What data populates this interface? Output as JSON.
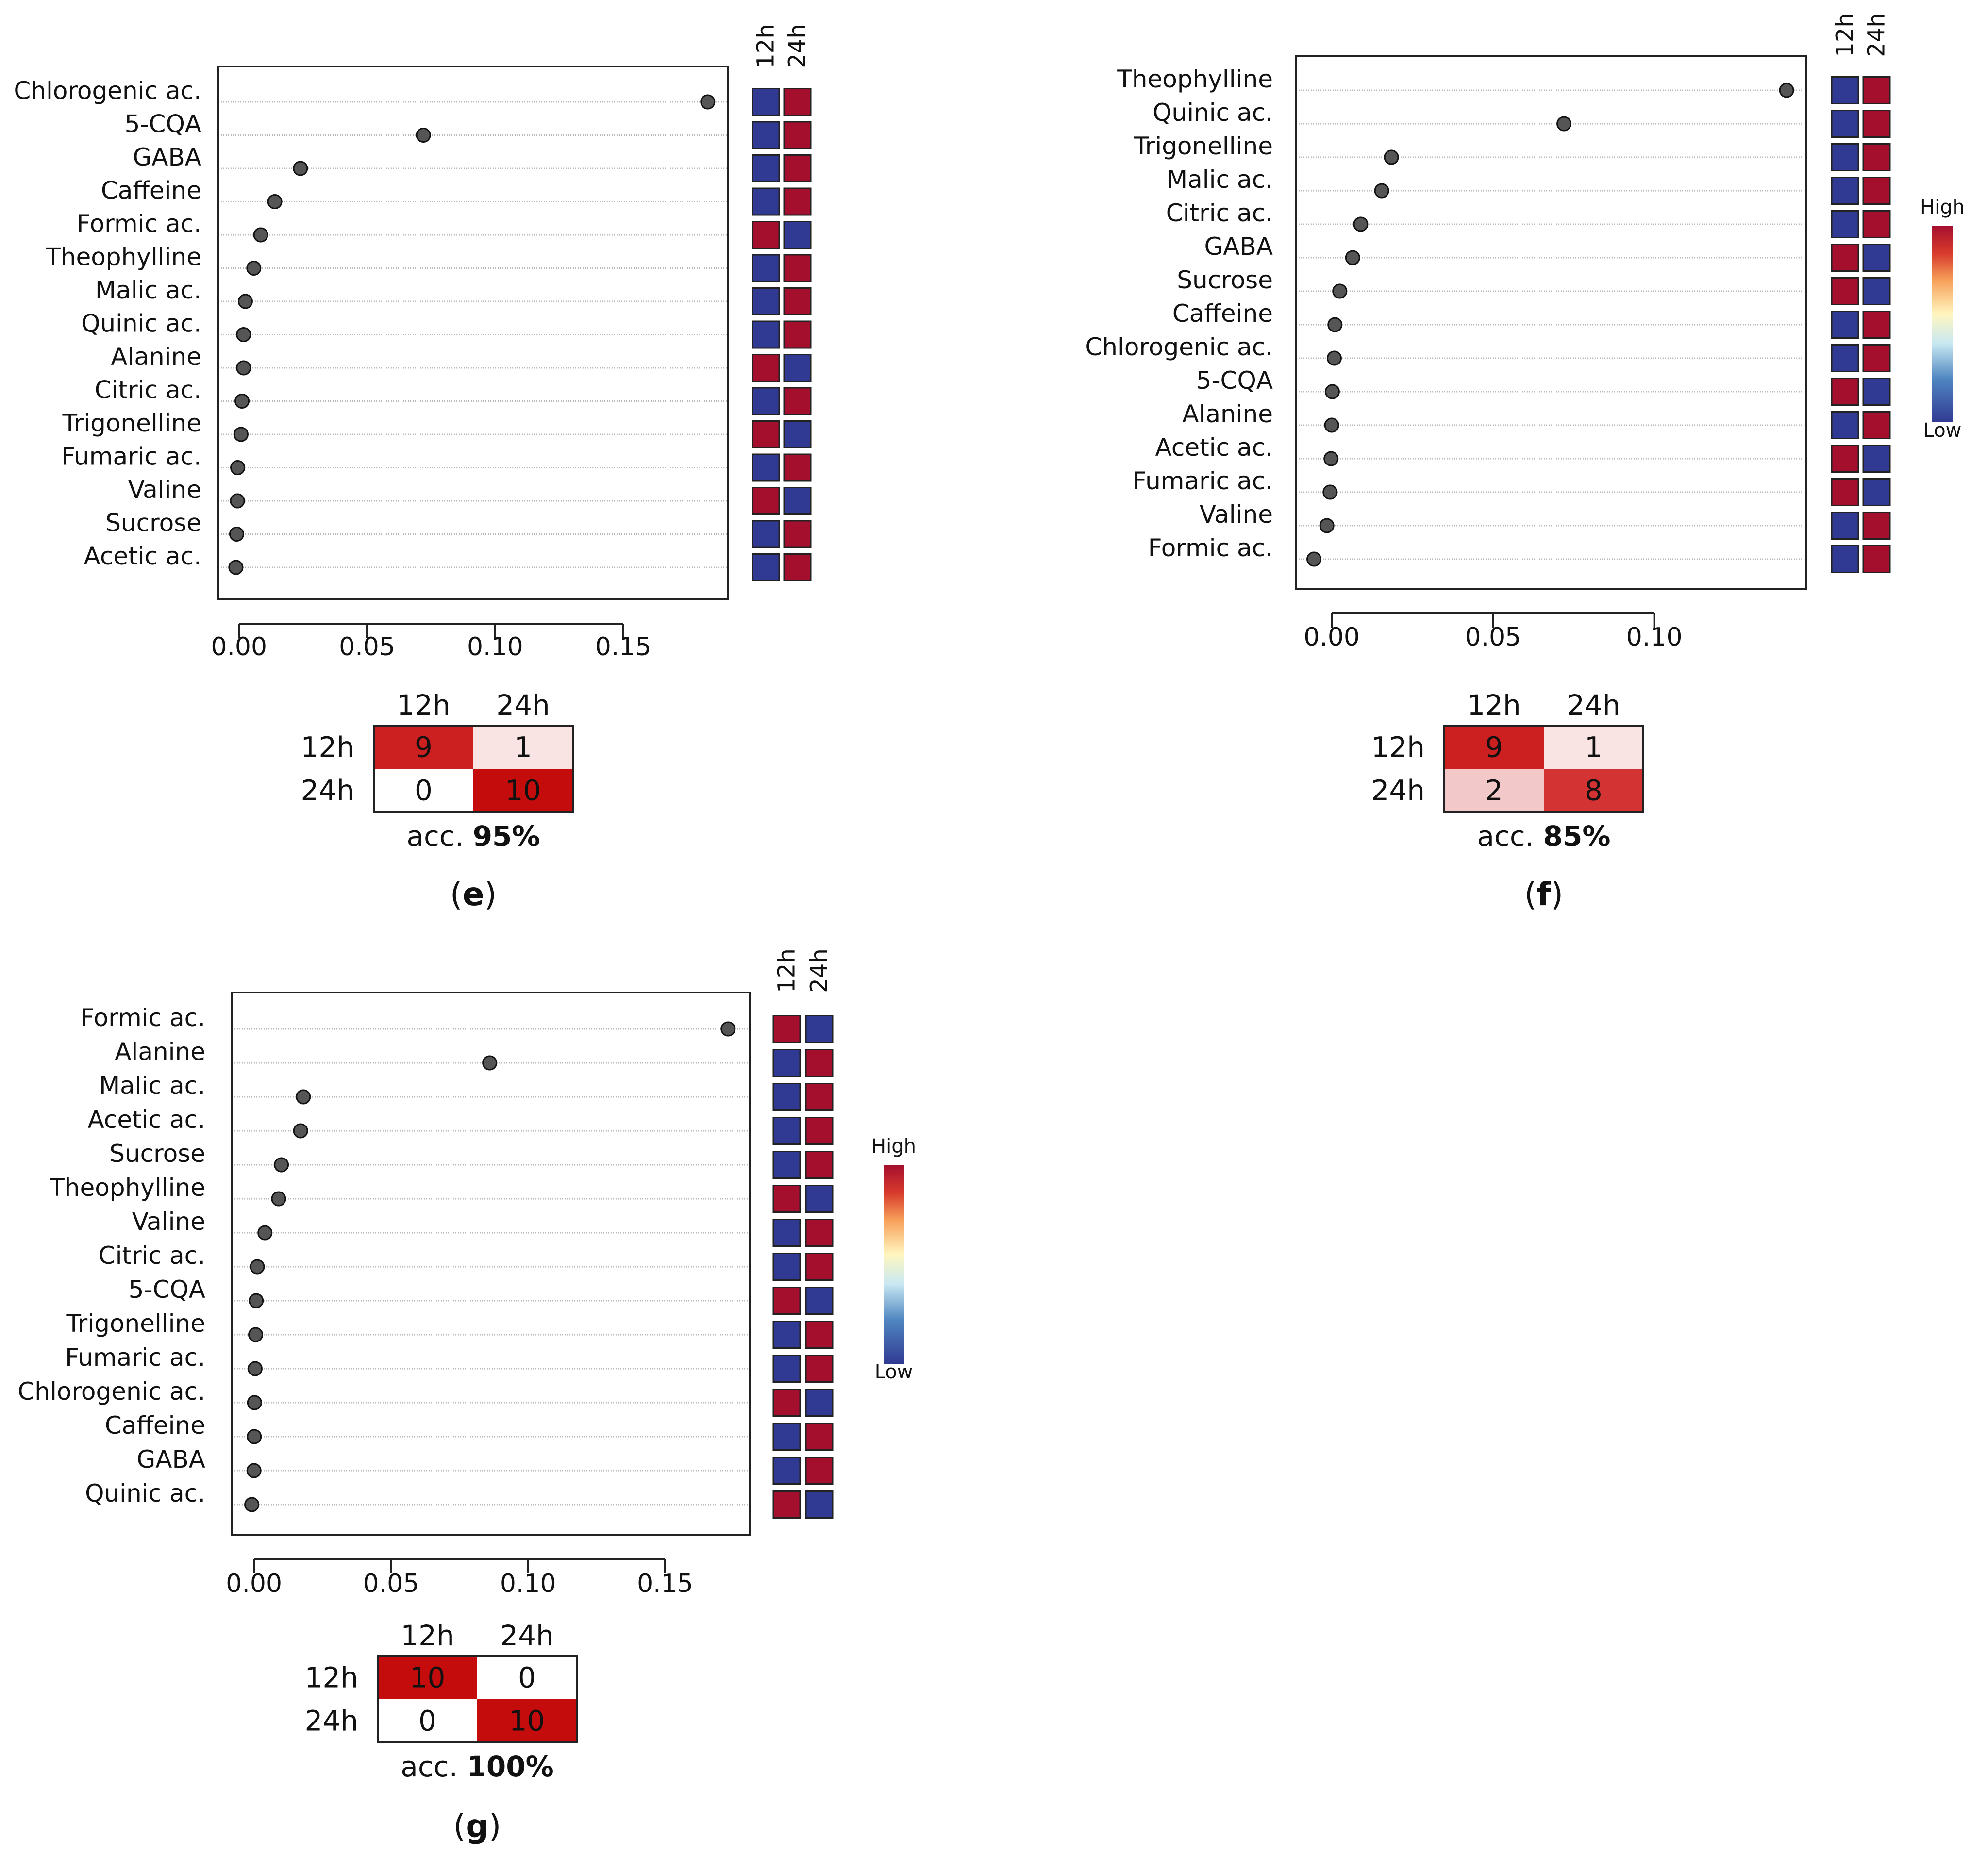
{
  "colors": {
    "high": "#a50f2e",
    "low": "#313a93",
    "dot": "#555555",
    "grid": "#b8b8b8",
    "axis": "#222222"
  },
  "chart_data": [
    {
      "type": "scatter",
      "panel_label": "e",
      "metabolites": [
        "Chlorogenic ac.",
        "5-CQA",
        "GABA",
        "Caffeine",
        "Formic ac.",
        "Theophylline",
        "Malic ac.",
        "Quinic ac.",
        "Alanine",
        "Citric ac.",
        "Trigonelline",
        "Fumaric ac.",
        "Valine",
        "Sucrose",
        "Acetic ac."
      ],
      "importance": [
        0.183,
        0.072,
        0.024,
        0.014,
        0.0085,
        0.0058,
        0.0025,
        0.0018,
        0.0018,
        0.0012,
        0.0008,
        -0.0005,
        -0.0006,
        -0.0009,
        -0.0012
      ],
      "x_ticks": [
        0.0,
        0.05,
        0.1,
        0.15
      ],
      "x_tick_labels": [
        "0.00",
        "0.05",
        "0.10",
        "0.15"
      ],
      "xlim": [
        -0.008,
        0.191
      ],
      "heat_columns": [
        "12h",
        "24h"
      ],
      "heat": [
        [
          "L",
          "H"
        ],
        [
          "L",
          "H"
        ],
        [
          "L",
          "H"
        ],
        [
          "L",
          "H"
        ],
        [
          "H",
          "L"
        ],
        [
          "L",
          "H"
        ],
        [
          "L",
          "H"
        ],
        [
          "L",
          "H"
        ],
        [
          "H",
          "L"
        ],
        [
          "L",
          "H"
        ],
        [
          "H",
          "L"
        ],
        [
          "L",
          "H"
        ],
        [
          "H",
          "L"
        ],
        [
          "L",
          "H"
        ],
        [
          "L",
          "H"
        ]
      ],
      "show_legend": false,
      "legend_high": "",
      "legend_low": "",
      "confusion": {
        "col_labels": [
          "12h",
          "24h"
        ],
        "row_labels": [
          "12h",
          "24h"
        ],
        "values": [
          [
            "9",
            "1"
          ],
          [
            "0",
            "10"
          ]
        ],
        "cell_colors": [
          [
            "#cc1f1f",
            "#f9e3e3"
          ],
          [
            "#ffffff",
            "#c40c0c"
          ]
        ],
        "accuracy_prefix": "acc.",
        "accuracy_value": "95%"
      }
    },
    {
      "type": "scatter",
      "panel_label": "f",
      "metabolites": [
        "Theophylline",
        "Quinic ac.",
        "Trigonelline",
        "Malic ac.",
        "Citric ac.",
        "GABA",
        "Sucrose",
        "Caffeine",
        "Chlorogenic ac.",
        "5-CQA",
        "Alanine",
        "Acetic ac.",
        "Fumaric ac.",
        "Valine",
        "Formic ac."
      ],
      "importance": [
        0.141,
        0.072,
        0.0185,
        0.0155,
        0.009,
        0.0065,
        0.0025,
        0.001,
        0.0008,
        0.0002,
        0.0,
        -0.0002,
        -0.0005,
        -0.0015,
        -0.0055
      ],
      "x_ticks": [
        0.0,
        0.05,
        0.1
      ],
      "x_tick_labels": [
        "0.00",
        "0.05",
        "0.10"
      ],
      "xlim": [
        -0.011,
        0.147
      ],
      "heat_columns": [
        "12h",
        "24h"
      ],
      "heat": [
        [
          "L",
          "H"
        ],
        [
          "L",
          "H"
        ],
        [
          "L",
          "H"
        ],
        [
          "L",
          "H"
        ],
        [
          "L",
          "H"
        ],
        [
          "H",
          "L"
        ],
        [
          "H",
          "L"
        ],
        [
          "L",
          "H"
        ],
        [
          "L",
          "H"
        ],
        [
          "H",
          "L"
        ],
        [
          "L",
          "H"
        ],
        [
          "H",
          "L"
        ],
        [
          "H",
          "L"
        ],
        [
          "L",
          "H"
        ],
        [
          "L",
          "H"
        ]
      ],
      "show_legend": true,
      "legend_high": "High",
      "legend_low": "Low",
      "confusion": {
        "col_labels": [
          "12h",
          "24h"
        ],
        "row_labels": [
          "12h",
          "24h"
        ],
        "values": [
          [
            "9",
            "1"
          ],
          [
            "2",
            "8"
          ]
        ],
        "cell_colors": [
          [
            "#cc1f1f",
            "#f9e3e3"
          ],
          [
            "#f2c8c8",
            "#d33333"
          ]
        ],
        "accuracy_prefix": "acc.",
        "accuracy_value": "85%"
      }
    },
    {
      "type": "scatter",
      "panel_label": "g",
      "metabolites": [
        "Formic ac.",
        "Alanine",
        "Malic ac.",
        "Acetic ac.",
        "Sucrose",
        "Theophylline",
        "Valine",
        "Citric ac.",
        "5-CQA",
        "Trigonelline",
        "Fumaric ac.",
        "Chlorogenic ac.",
        "Caffeine",
        "GABA",
        "Quinic ac."
      ],
      "importance": [
        0.173,
        0.086,
        0.018,
        0.017,
        0.01,
        0.009,
        0.004,
        0.0012,
        0.0008,
        0.0006,
        0.0004,
        0.0002,
        0.0001,
        0.0,
        -0.0008
      ],
      "x_ticks": [
        0.0,
        0.05,
        0.1,
        0.15
      ],
      "x_tick_labels": [
        "0.00",
        "0.05",
        "0.10",
        "0.15"
      ],
      "xlim": [
        -0.008,
        0.181
      ],
      "heat_columns": [
        "12h",
        "24h"
      ],
      "heat": [
        [
          "H",
          "L"
        ],
        [
          "L",
          "H"
        ],
        [
          "L",
          "H"
        ],
        [
          "L",
          "H"
        ],
        [
          "L",
          "H"
        ],
        [
          "H",
          "L"
        ],
        [
          "L",
          "H"
        ],
        [
          "L",
          "H"
        ],
        [
          "H",
          "L"
        ],
        [
          "L",
          "H"
        ],
        [
          "L",
          "H"
        ],
        [
          "H",
          "L"
        ],
        [
          "L",
          "H"
        ],
        [
          "L",
          "H"
        ],
        [
          "H",
          "L"
        ]
      ],
      "show_legend": true,
      "legend_high": "High",
      "legend_low": "Low",
      "confusion": {
        "col_labels": [
          "12h",
          "24h"
        ],
        "row_labels": [
          "12h",
          "24h"
        ],
        "values": [
          [
            "10",
            "0"
          ],
          [
            "0",
            "10"
          ]
        ],
        "cell_colors": [
          [
            "#c40c0c",
            "#ffffff"
          ],
          [
            "#ffffff",
            "#c40c0c"
          ]
        ],
        "accuracy_prefix": "acc.",
        "accuracy_value": "100%"
      }
    }
  ]
}
